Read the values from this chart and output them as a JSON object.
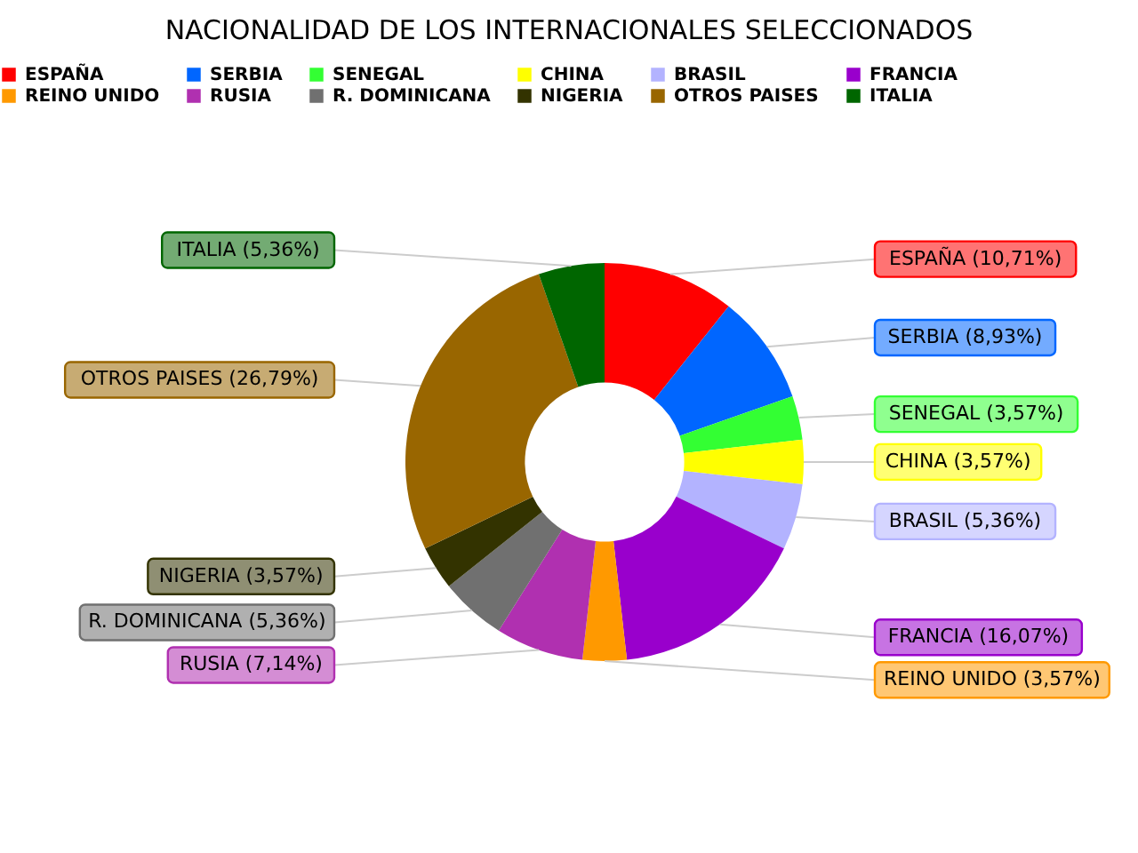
{
  "chart_data": {
    "type": "donut",
    "title": "NACIONALIDAD DE LOS INTERNACIONALES SELECCIONADOS",
    "categories": [
      "ESPAÑA",
      "SERBIA",
      "SENEGAL",
      "CHINA",
      "BRASIL",
      "FRANCIA",
      "REINO UNIDO",
      "RUSIA",
      "R. DOMINICANA",
      "NIGERIA",
      "OTROS PAISES",
      "ITALIA"
    ],
    "values": [
      10.71,
      8.93,
      3.57,
      3.57,
      5.36,
      16.07,
      3.57,
      7.14,
      5.36,
      3.57,
      26.79,
      5.36
    ],
    "value_labels": [
      "(10,71%)",
      "(8,93%)",
      "(3,57%)",
      "(3,57%)",
      "(5,36%)",
      "(16,07%)",
      "(3,57%)",
      "(7,14%)",
      "(5,36%)",
      "(3,57%)",
      "(26,79%)",
      "(5,36%)"
    ],
    "colors": [
      "#ff0000",
      "#0066ff",
      "#33ff33",
      "#ffff00",
      "#b3b3ff",
      "#9900cc",
      "#ff9900",
      "#b030b0",
      "#707070",
      "#333300",
      "#996600",
      "#006600"
    ],
    "legend": "top"
  }
}
